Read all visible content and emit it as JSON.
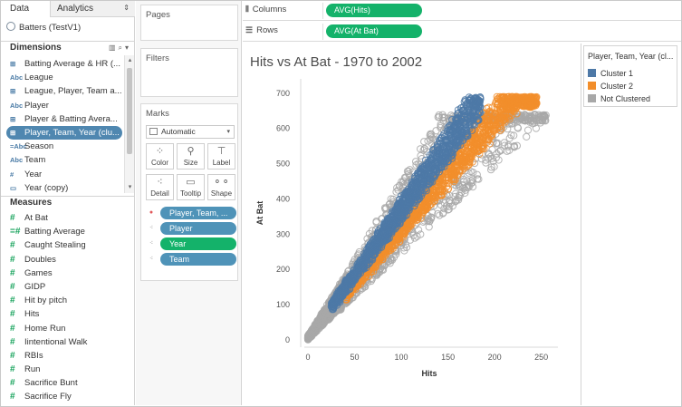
{
  "left_pane": {
    "tabs": [
      {
        "label": "Data"
      },
      {
        "label": "Analytics"
      }
    ],
    "datasource": "Batters (TestV1)",
    "dimensions_header": "Dimensions",
    "dimensions": [
      {
        "icon": "Abc-calc",
        "label": "Batting Average & HR (..."
      },
      {
        "icon": "Abc",
        "label": "League"
      },
      {
        "icon": "Abc-calc",
        "label": "League, Player, Team a..."
      },
      {
        "icon": "Abc",
        "label": "Player"
      },
      {
        "icon": "Abc-calc",
        "label": "Player & Batting Avera..."
      },
      {
        "icon": "Abc-calc",
        "label": "Player, Team, Year (clu..."
      },
      {
        "icon": "=Abc",
        "label": "Season"
      },
      {
        "icon": "Abc",
        "label": "Team"
      },
      {
        "icon": "#",
        "label": "Year"
      },
      {
        "icon": "date",
        "label": "Year (copy)"
      }
    ],
    "measures_header": "Measures",
    "measures": [
      {
        "icon": "#",
        "label": "At Bat"
      },
      {
        "icon": "=#",
        "label": "Batting Average"
      },
      {
        "icon": "#",
        "label": "Caught Stealing"
      },
      {
        "icon": "#",
        "label": "Doubles"
      },
      {
        "icon": "#",
        "label": "Games"
      },
      {
        "icon": "#",
        "label": "GIDP"
      },
      {
        "icon": "#",
        "label": "Hit by pitch"
      },
      {
        "icon": "#",
        "label": "Hits"
      },
      {
        "icon": "#",
        "label": "Home Run"
      },
      {
        "icon": "#",
        "label": "Iintentional Walk"
      },
      {
        "icon": "#",
        "label": "RBIs"
      },
      {
        "icon": "#",
        "label": "Run"
      },
      {
        "icon": "#",
        "label": "Sacrifice Bunt"
      },
      {
        "icon": "#",
        "label": "Sacrifice Fly"
      }
    ]
  },
  "cards": {
    "pages": "Pages",
    "filters": "Filters",
    "marks": "Marks",
    "mark_type": "Automatic",
    "buttons": [
      {
        "label": "Color",
        "icon": "color-icon"
      },
      {
        "label": "Size",
        "icon": "size-icon"
      },
      {
        "label": "Label",
        "icon": "label-icon"
      },
      {
        "label": "Detail",
        "icon": "detail-icon"
      },
      {
        "label": "Tooltip",
        "icon": "tooltip-icon"
      },
      {
        "label": "Shape",
        "icon": "shape-icon"
      }
    ],
    "mark_pills": [
      {
        "label": "Player, Team, ...",
        "role": "color",
        "color": "#4f93b8"
      },
      {
        "label": "Player",
        "role": "detail",
        "color": "#4f93b8"
      },
      {
        "label": "Year",
        "role": "detail",
        "color": "#14b26a"
      },
      {
        "label": "Team",
        "role": "detail",
        "color": "#4f93b8"
      }
    ]
  },
  "shelves": {
    "columns_label": "Columns",
    "columns_pill": "AVG(Hits)",
    "rows_label": "Rows",
    "rows_pill": "AVG(At Bat)"
  },
  "view": {
    "title": "Hits vs At Bat - 1970 to 2002"
  },
  "legend": {
    "title": "Player, Team, Year (cl...",
    "items": [
      {
        "label": "Cluster 1",
        "color": "#4e79a7"
      },
      {
        "label": "Cluster 2",
        "color": "#f28e2b"
      },
      {
        "label": "Not Clustered",
        "color": "#a8a8a8"
      }
    ]
  },
  "chart_data": {
    "type": "scatter",
    "title": "Hits vs At Bat - 1970 to 2002",
    "xlabel": "Hits",
    "ylabel": "At Bat",
    "xlim": [
      0,
      260
    ],
    "ylim": [
      0,
      720
    ],
    "x_ticks": [
      0,
      50,
      100,
      150,
      200,
      250
    ],
    "y_ticks": [
      0,
      100,
      200,
      300,
      400,
      500,
      600,
      700
    ],
    "grid": false,
    "legend_position": "right",
    "marker": "hollow circle",
    "series": [
      {
        "name": "Cluster 1",
        "color": "#4e79a7",
        "ab_to_hits_ratio": [
          3.4,
          4.0
        ],
        "hits_range": [
          20,
          185
        ]
      },
      {
        "name": "Cluster 2",
        "color": "#f28e2b",
        "ab_to_hits_ratio": [
          2.9,
          3.4
        ],
        "hits_range": [
          40,
          245
        ]
      },
      {
        "name": "Not Clustered",
        "color": "#a8a8a8",
        "hits_range": [
          0,
          260
        ],
        "at_bat_range": [
          0,
          640
        ]
      }
    ]
  }
}
